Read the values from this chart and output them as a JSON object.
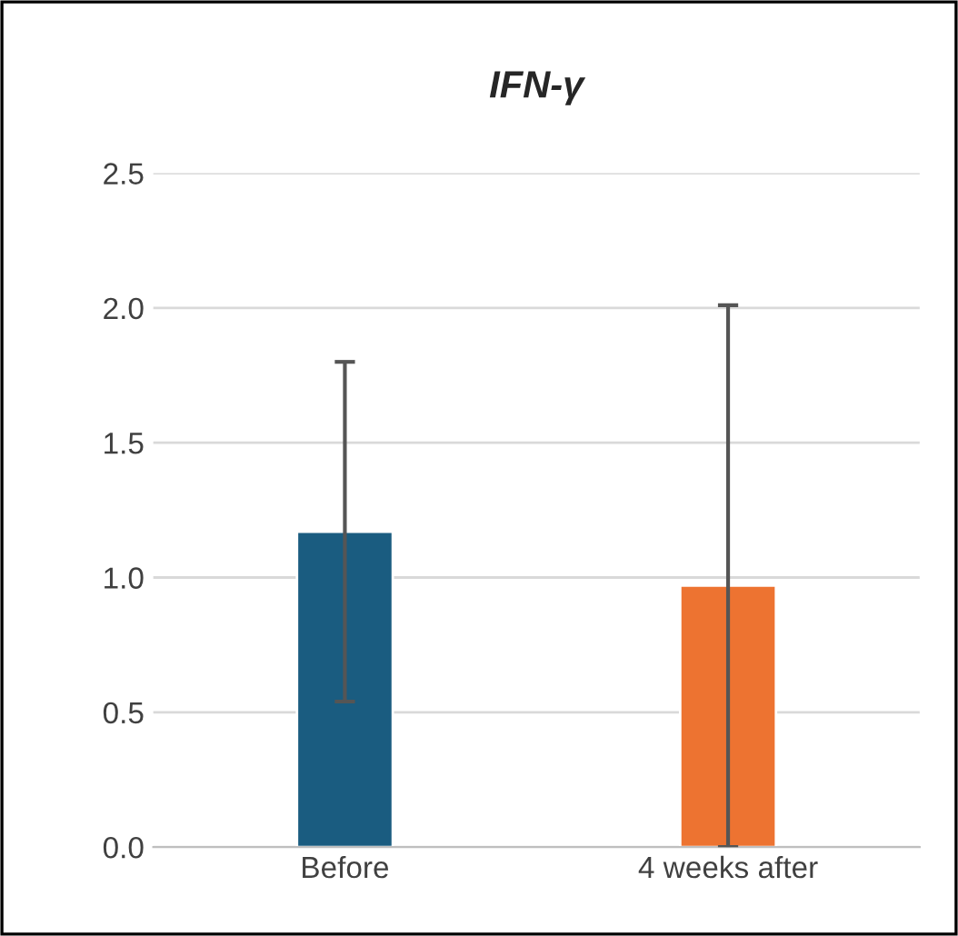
{
  "chart_data": {
    "type": "bar",
    "title": "IFN-γ",
    "categories": [
      "Before",
      "4 weeks after"
    ],
    "values": [
      1.17,
      0.97
    ],
    "colors": [
      "#1a5c80",
      "#ed7331"
    ],
    "errors": [
      0.63,
      [
        0,
        2.01
      ]
    ],
    "ylim": [
      0,
      2.5
    ],
    "yticks": [
      {
        "value": 0,
        "label": "0.0"
      },
      {
        "value": 0.5,
        "label": "0.5"
      },
      {
        "value": 1,
        "label": "1.0"
      },
      {
        "value": 1.5,
        "label": "1.5"
      },
      {
        "value": 2,
        "label": "2.0"
      },
      {
        "value": 2.5,
        "label": "2.5"
      }
    ],
    "grid": "y"
  }
}
